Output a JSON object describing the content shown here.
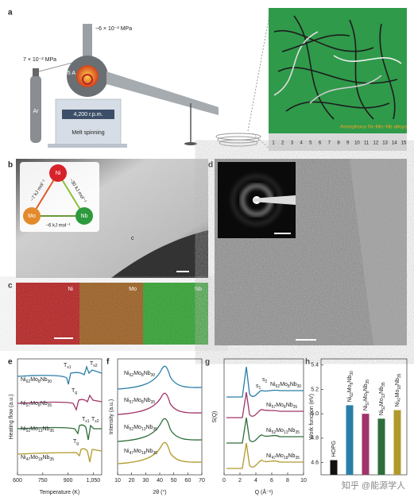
{
  "panel_labels": [
    "a",
    "b",
    "c",
    "d",
    "e",
    "f",
    "g",
    "h"
  ],
  "panel_a": {
    "argon": "Ar",
    "pressure_left": "7 × 10⁻² MPa",
    "pressure_top": "~6 × 10⁻² MPa",
    "current": "55 A",
    "speed": "4,200 r.p.m.",
    "process": "Melt spinning",
    "photo_caption": "Amorphous Ni–Mo–Nb alloys",
    "ruler": [
      "1",
      "2",
      "3",
      "4",
      "5",
      "6",
      "7",
      "8",
      "9",
      "10",
      "11",
      "12",
      "13",
      "14",
      "15"
    ]
  },
  "panel_b": {
    "elements": [
      "Ni",
      "Mo",
      "Nb"
    ],
    "enthalpies": [
      "−7 kJ mol⁻¹",
      "−30 kJ mol⁻¹",
      "−6 kJ mol⁻¹"
    ],
    "mark": "c"
  },
  "panel_c": {
    "maps": [
      "Ni",
      "Mo",
      "Nb"
    ]
  },
  "compositions": [
    "Ni62Mo8Nb30",
    "Ni57Mo8Nb35",
    "Ni52Mo13Nb35",
    "Ni47Mo18Nb35"
  ],
  "panel_e": {
    "xlabel": "Temperature (K)",
    "ylabel": "Heating flow (a.u.)",
    "xlim": [
      600,
      1100
    ],
    "xticks": [
      600,
      750,
      900,
      {
        "value": 1050,
        "label": "1,050"
      }
    ],
    "annotations": [
      "Tg",
      "Tx1",
      "Tx2"
    ]
  },
  "panel_f": {
    "xlabel": "2θ (°)",
    "ylabel": "Intensity (a.u.)",
    "xlim": [
      10,
      70
    ],
    "xticks": [
      10,
      20,
      30,
      40,
      50,
      60,
      70
    ]
  },
  "panel_g": {
    "xlabel": "Q (Å⁻¹)",
    "ylabel": "S(Q)",
    "xlim": [
      0,
      10
    ],
    "xticks": [
      0,
      2,
      4,
      6,
      8,
      10
    ],
    "annotations": [
      "s1",
      "s2"
    ]
  },
  "panel_h": {
    "type": "bar",
    "ylabel": "Work function (eV)",
    "ylim": [
      4.5,
      5.45
    ],
    "yticks": [
      4.6,
      4.8,
      {
        "value": 5,
        "label": "5.0"
      },
      5.2,
      5.4
    ],
    "categories": [
      "HOPG",
      "Ni62Mo8Nb30",
      "Ni57Mo8Nb35",
      "Ni52Mo13Nb35",
      "Ni47Mo18Nb35"
    ],
    "values": [
      4.62,
      5.07,
      5.0,
      4.96,
      5.03
    ],
    "colors": [
      "#111111",
      "#2a7fa8",
      "#a0356a",
      "#2f6e3b",
      "#b09a2c"
    ]
  },
  "watermark": "知乎 @能源学人"
}
